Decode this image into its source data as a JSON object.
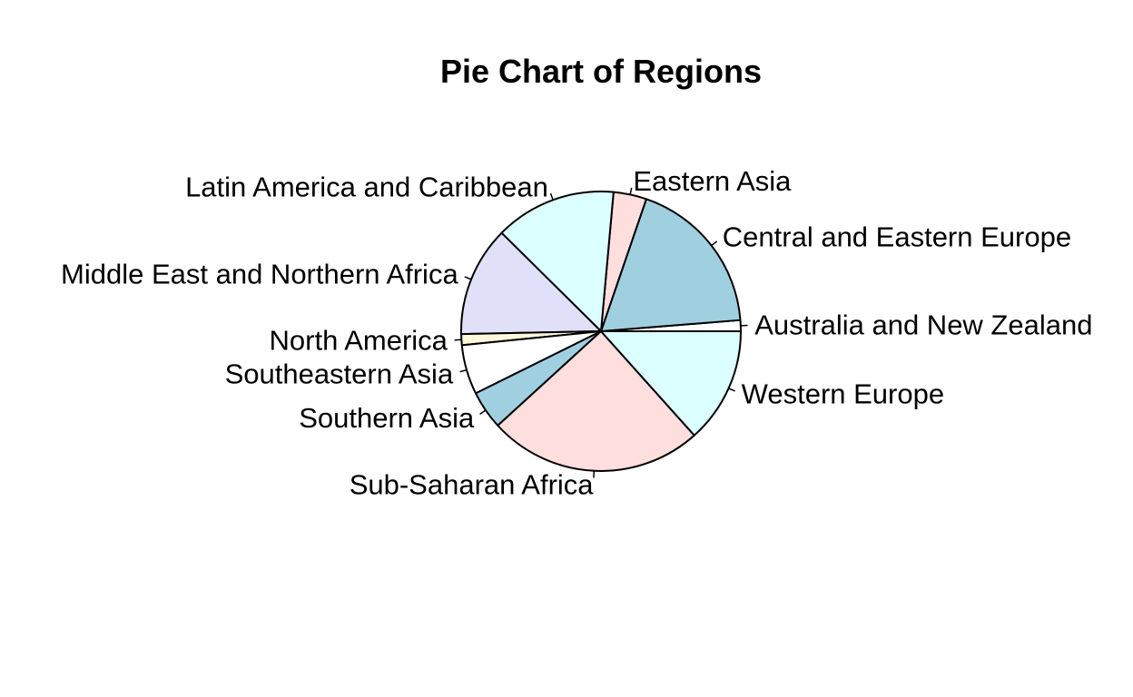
{
  "chart_data": {
    "type": "pie",
    "title": "Pie Chart of Regions",
    "legend": "none",
    "slices": [
      {
        "label": "Australia and New Zealand",
        "value": 2,
        "color": "#ffffff"
      },
      {
        "label": "Central and Eastern Europe",
        "value": 29,
        "color": "#a0cfe0"
      },
      {
        "label": "Eastern Asia",
        "value": 6,
        "color": "#ffdede"
      },
      {
        "label": "Latin America and Caribbean",
        "value": 22,
        "color": "#dcffff"
      },
      {
        "label": "Middle East and Northern Africa",
        "value": 20,
        "color": "#e0e0f8"
      },
      {
        "label": "North America",
        "value": 2,
        "color": "#fff8dc"
      },
      {
        "label": "Southeastern Asia",
        "value": 9,
        "color": "#ffffff"
      },
      {
        "label": "Southern Asia",
        "value": 7,
        "color": "#a0cfe0"
      },
      {
        "label": "Sub-Saharan Africa",
        "value": 39,
        "color": "#ffdede"
      },
      {
        "label": "Western Europe",
        "value": 21,
        "color": "#dcffff"
      }
    ]
  }
}
